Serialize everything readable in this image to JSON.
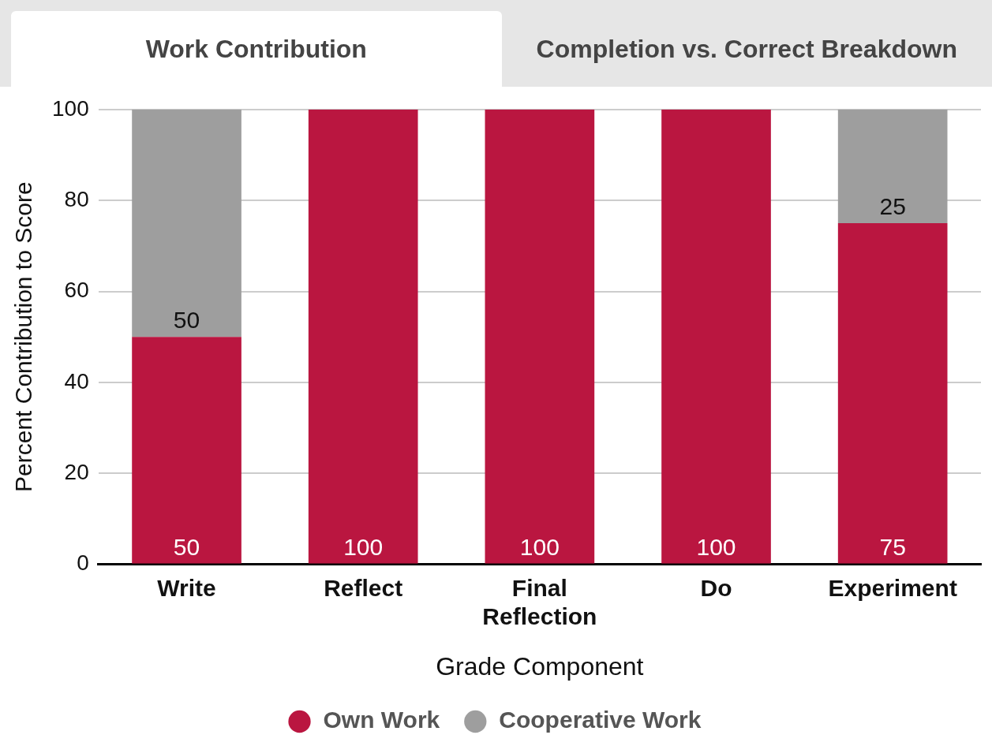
{
  "chart_data": {
    "type": "bar",
    "stacked": true,
    "annotations": [
      "Work Contribution",
      "Completion vs. Correct Breakdown"
    ],
    "xlabel": "Grade Component",
    "ylabel": "Percent Contribution to Score",
    "categories": [
      "Write",
      "Reflect",
      "Final Reflection",
      "Do",
      "Experiment"
    ],
    "series": [
      {
        "name": "Own Work",
        "color": "#ba1640",
        "values": [
          50,
          100,
          100,
          100,
          75
        ],
        "value_labels": [
          "50",
          "100",
          "100",
          "100",
          "75"
        ]
      },
      {
        "name": "Cooperative Work",
        "color": "#9e9e9e",
        "values": [
          50,
          0,
          0,
          0,
          25
        ],
        "value_labels": [
          "50",
          null,
          null,
          null,
          "25"
        ]
      }
    ],
    "ylim": [
      0,
      100
    ],
    "yticks": [
      0,
      20,
      40,
      60,
      80,
      100
    ],
    "grid": "y",
    "legend": "bottom"
  }
}
